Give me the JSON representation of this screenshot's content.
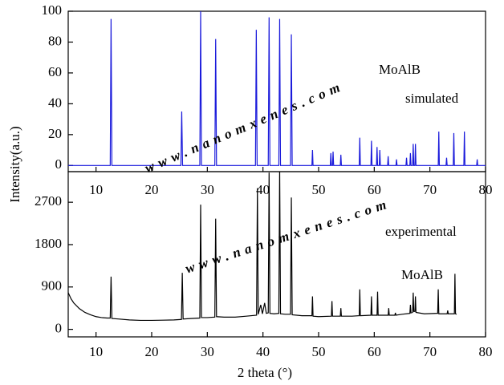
{
  "chart_data": [
    {
      "type": "line",
      "color": "#1a1adb",
      "ylabel": "Intensity(a.u.)",
      "xlim": [
        5,
        80
      ],
      "ylim": [
        -4,
        100
      ],
      "xticks": [
        10,
        20,
        30,
        40,
        50,
        60,
        70,
        80
      ],
      "yticks": [
        0,
        20,
        40,
        60,
        80,
        100
      ],
      "annotations": [
        {
          "text": "MoAlB",
          "color": "#e01010"
        },
        {
          "text": "simulated",
          "color": "#1a1adb"
        },
        {
          "text": "www.nanomxenes.com",
          "color": "#c4c4c4"
        }
      ],
      "x": [
        5,
        12.55,
        12.7,
        12.85,
        25.25,
        25.4,
        25.55,
        28.65,
        28.8,
        28.95,
        31.35,
        31.5,
        31.65,
        38.65,
        38.8,
        38.95,
        40.95,
        41.1,
        41.25,
        42.85,
        43.0,
        43.15,
        44.95,
        45.1,
        45.25,
        48.8,
        48.9,
        49.0,
        52.1,
        52.2,
        52.3,
        52.5,
        52.6,
        52.7,
        53.9,
        54.0,
        54.1,
        57.3,
        57.4,
        57.5,
        59.4,
        59.5,
        59.6,
        60.4,
        60.5,
        60.6,
        60.9,
        61.0,
        61.1,
        62.4,
        62.5,
        62.6,
        63.9,
        64.0,
        64.1,
        65.7,
        65.8,
        65.9,
        66.4,
        66.5,
        66.6,
        66.9,
        67.0,
        67.1,
        67.3,
        67.4,
        67.5,
        71.5,
        71.6,
        71.7,
        72.9,
        73.0,
        73.1,
        74.2,
        74.3,
        74.4,
        76.1,
        76.2,
        76.3,
        78.4,
        78.5,
        78.6,
        80
      ],
      "values": [
        0,
        0,
        95,
        0,
        0,
        35,
        0,
        0,
        100,
        0,
        0,
        82,
        0,
        0,
        88,
        0,
        0,
        96,
        0,
        0,
        95,
        0,
        0,
        85,
        0,
        0,
        10,
        0,
        0,
        8,
        0,
        0,
        9,
        0,
        0,
        7,
        0,
        0,
        18,
        0,
        0,
        16,
        0,
        0,
        12,
        0,
        0,
        10,
        0,
        0,
        6,
        0,
        0,
        4,
        0,
        0,
        5,
        0,
        0,
        8,
        0,
        0,
        14,
        0,
        0,
        14,
        0,
        0,
        22,
        0,
        0,
        5,
        0,
        0,
        21,
        0,
        0,
        22,
        0,
        0,
        4,
        0,
        0
      ]
    },
    {
      "type": "line",
      "color": "#000000",
      "xlabel": "2 theta (°)",
      "xlim": [
        5,
        80
      ],
      "ylim": [
        -160,
        3350
      ],
      "xticks": [
        10,
        20,
        30,
        40,
        50,
        60,
        70,
        80
      ],
      "yticks": [
        0,
        900,
        1800,
        2700
      ],
      "annotations": [
        {
          "text": "experimental",
          "color": "#000000"
        },
        {
          "text": "MoAlB",
          "color": "#e01010"
        },
        {
          "text": "www.nanomxenes.com",
          "color": "#c4c4c4"
        }
      ],
      "x": [
        5,
        5.5,
        6,
        7,
        8,
        9,
        10,
        11,
        12,
        12.55,
        12.7,
        12.85,
        14,
        16,
        18,
        20,
        22,
        24,
        25.35,
        25.5,
        25.65,
        27,
        28.65,
        28.8,
        28.95,
        30,
        31.35,
        31.5,
        31.65,
        33,
        35,
        37,
        38.85,
        39.0,
        39.15,
        39.6,
        39.9,
        40.3,
        40.6,
        40.95,
        41.1,
        41.25,
        42,
        42.85,
        43.0,
        43.15,
        44,
        44.95,
        45.1,
        45.25,
        47,
        48.8,
        48.9,
        49.0,
        50,
        52.3,
        52.4,
        52.5,
        53.9,
        54.0,
        54.1,
        56,
        57.3,
        57.4,
        57.5,
        59.4,
        59.5,
        59.6,
        60.5,
        60.6,
        60.7,
        62.5,
        62.6,
        62.7,
        63.7,
        63.8,
        63.9,
        65,
        66.4,
        66.5,
        66.6,
        66.9,
        67.0,
        67.1,
        67.3,
        67.4,
        67.5,
        69,
        71.4,
        71.5,
        71.6,
        73.1,
        73.2,
        73.3,
        74.4,
        74.5,
        74.6,
        74.8
      ],
      "values": [
        780,
        650,
        560,
        440,
        360,
        310,
        270,
        250,
        240,
        240,
        1120,
        230,
        220,
        200,
        190,
        190,
        195,
        200,
        210,
        1200,
        220,
        230,
        240,
        2650,
        250,
        250,
        260,
        2350,
        270,
        260,
        260,
        280,
        300,
        3000,
        320,
        520,
        330,
        560,
        340,
        350,
        3330,
        340,
        330,
        340,
        3450,
        330,
        320,
        320,
        2800,
        310,
        290,
        290,
        700,
        280,
        270,
        280,
        600,
        280,
        280,
        450,
        280,
        280,
        290,
        850,
        290,
        300,
        700,
        300,
        300,
        800,
        300,
        300,
        450,
        300,
        300,
        350,
        300,
        320,
        340,
        520,
        350,
        360,
        780,
        380,
        380,
        700,
        360,
        330,
        340,
        850,
        330,
        330,
        400,
        330,
        330,
        1180,
        330,
        320
      ]
    }
  ]
}
